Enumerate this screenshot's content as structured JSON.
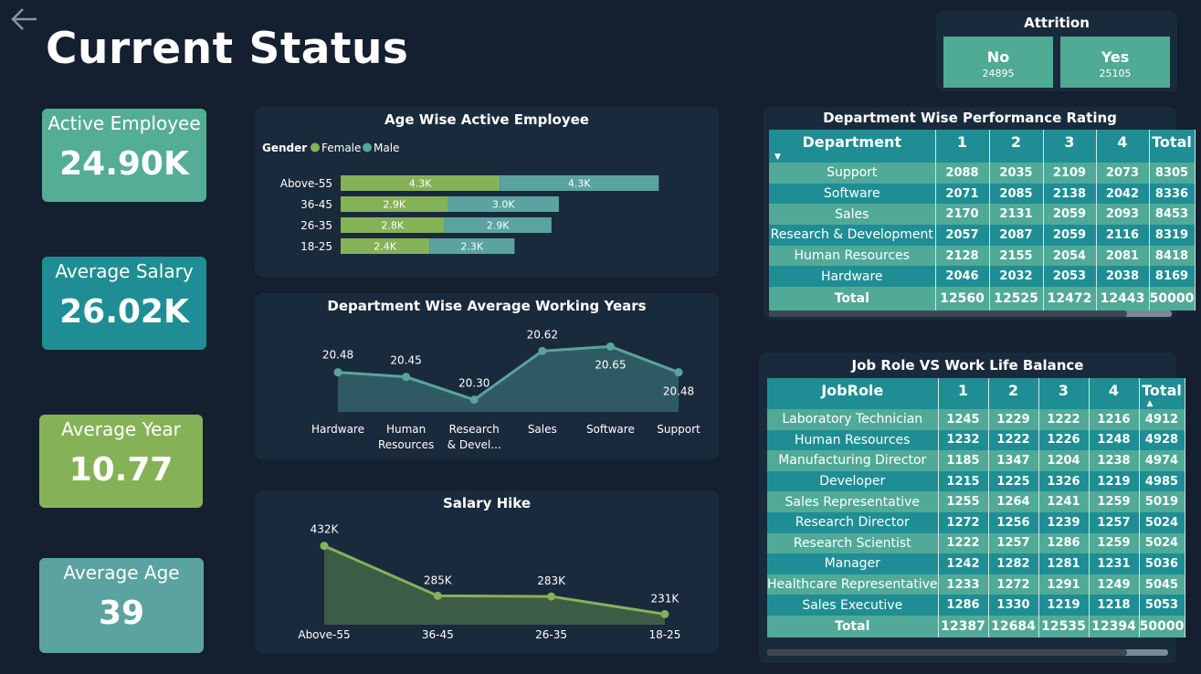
{
  "page_title": "Current Status",
  "attrition": {
    "title": "Attrition",
    "options": [
      {
        "label": "No",
        "count": "24895"
      },
      {
        "label": "Yes",
        "count": "25105"
      }
    ]
  },
  "kpis": [
    {
      "label": "Active Employee",
      "value": "24.90K",
      "color": "#54ae96"
    },
    {
      "label": "Average Salary",
      "value": "26.02K",
      "color": "#1e8e94"
    },
    {
      "label": "Average Year",
      "value": "10.77",
      "color": "#86b257"
    },
    {
      "label": "Average Age",
      "value": "39",
      "color": "#5aa3a0"
    }
  ],
  "colors": {
    "female": "#86b257",
    "male": "#5aa3a0",
    "line": "#5aa3a0",
    "line_fill": "#2f5a64",
    "hike": "#86b257",
    "hike_fill": "#3d5c45"
  },
  "age_chart": {
    "title": "Age Wise Active Employee",
    "legend_title": "Gender",
    "legend": [
      "Female",
      "Male"
    ],
    "chart_data": {
      "type": "bar",
      "categories": [
        "Above-55",
        "36-45",
        "26-35",
        "18-25"
      ],
      "series": [
        {
          "name": "Female",
          "values": [
            4.3,
            2.9,
            2.8,
            2.4
          ],
          "labels": [
            "4.3K",
            "2.9K",
            "2.8K",
            "2.4K"
          ]
        },
        {
          "name": "Male",
          "values": [
            4.3,
            3.0,
            2.9,
            2.3
          ],
          "labels": [
            "4.3K",
            "3.0K",
            "2.9K",
            "2.3K"
          ]
        }
      ]
    }
  },
  "work_years_chart": {
    "title": "Department Wise Average Working Years",
    "chart_data": {
      "type": "area",
      "categories": [
        "Hardware",
        "Human Resources",
        "Research & Devel...",
        "Sales",
        "Software",
        "Support"
      ],
      "category_lines": [
        [
          "Hardware"
        ],
        [
          "Human",
          "Resources"
        ],
        [
          "Research",
          "& Devel..."
        ],
        [
          "Sales"
        ],
        [
          "Software"
        ],
        [
          "Support"
        ]
      ],
      "values": [
        20.48,
        20.45,
        20.3,
        20.62,
        20.65,
        20.48
      ],
      "labels": [
        "20.48",
        "20.45",
        "20.30",
        "20.62",
        "20.65",
        "20.48"
      ],
      "ylim": [
        20.22,
        20.7
      ]
    }
  },
  "salary_hike_chart": {
    "title": "Salary Hike",
    "chart_data": {
      "type": "area",
      "categories": [
        "Above-55",
        "36-45",
        "26-35",
        "18-25"
      ],
      "values": [
        432,
        285,
        283,
        231
      ],
      "labels": [
        "432K",
        "285K",
        "283K",
        "231K"
      ],
      "ylim": [
        200,
        450
      ]
    }
  },
  "dept_table": {
    "title": "Department Wise Performance Rating",
    "columns": [
      "Department",
      "1",
      "2",
      "3",
      "4",
      "Total"
    ],
    "rows": [
      [
        "Support",
        "2088",
        "2035",
        "2109",
        "2073",
        "8305"
      ],
      [
        "Software",
        "2071",
        "2085",
        "2138",
        "2042",
        "8336"
      ],
      [
        "Sales",
        "2170",
        "2131",
        "2059",
        "2093",
        "8453"
      ],
      [
        "Research & Development",
        "2057",
        "2087",
        "2059",
        "2116",
        "8319"
      ],
      [
        "Human Resources",
        "2128",
        "2155",
        "2054",
        "2081",
        "8418"
      ],
      [
        "Hardware",
        "2046",
        "2032",
        "2053",
        "2038",
        "8169"
      ]
    ],
    "total": [
      "Total",
      "12560",
      "12525",
      "12472",
      "12443",
      "50000"
    ]
  },
  "job_table": {
    "title": "Job Role VS Work Life Balance",
    "columns": [
      "JobRole",
      "1",
      "2",
      "3",
      "4",
      "Total"
    ],
    "rows": [
      [
        "Laboratory Technician",
        "1245",
        "1229",
        "1222",
        "1216",
        "4912"
      ],
      [
        "Human Resources",
        "1232",
        "1222",
        "1226",
        "1248",
        "4928"
      ],
      [
        "Manufacturing Director",
        "1185",
        "1347",
        "1204",
        "1238",
        "4974"
      ],
      [
        "Developer",
        "1215",
        "1225",
        "1326",
        "1219",
        "4985"
      ],
      [
        "Sales Representative",
        "1255",
        "1264",
        "1241",
        "1259",
        "5019"
      ],
      [
        "Research Director",
        "1272",
        "1256",
        "1239",
        "1257",
        "5024"
      ],
      [
        "Research Scientist",
        "1222",
        "1257",
        "1286",
        "1259",
        "5024"
      ],
      [
        "Manager",
        "1242",
        "1282",
        "1281",
        "1231",
        "5036"
      ],
      [
        "Healthcare Representative",
        "1233",
        "1272",
        "1291",
        "1249",
        "5045"
      ],
      [
        "Sales Executive",
        "1286",
        "1330",
        "1219",
        "1218",
        "5053"
      ]
    ],
    "total": [
      "Total",
      "12387",
      "12684",
      "12535",
      "12394",
      "50000"
    ]
  }
}
